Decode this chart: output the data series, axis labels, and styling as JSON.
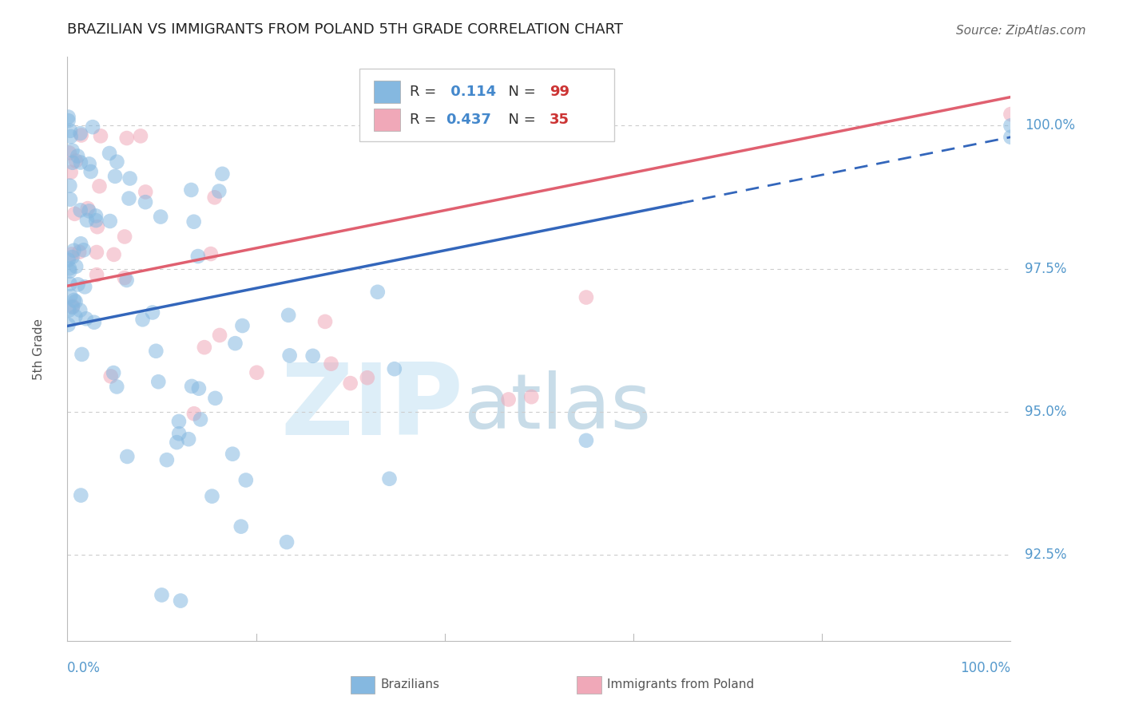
{
  "title": "BRAZILIAN VS IMMIGRANTS FROM POLAND 5TH GRADE CORRELATION CHART",
  "source": "Source: ZipAtlas.com",
  "ylabel": "5th Grade",
  "y_ticks": [
    92.5,
    95.0,
    97.5,
    100.0
  ],
  "y_tick_labels": [
    "92.5%",
    "95.0%",
    "97.5%",
    "100.0%"
  ],
  "ylim": [
    91.0,
    101.2
  ],
  "xlim": [
    0.0,
    100.0
  ],
  "blue_R": 0.114,
  "blue_N": 99,
  "pink_R": 0.437,
  "pink_N": 35,
  "blue_color": "#85b8e0",
  "pink_color": "#f0a8b8",
  "blue_line_color": "#3366bb",
  "pink_line_color": "#e06070",
  "watermark_zip": "ZIP",
  "watermark_atlas": "atlas",
  "watermark_color": "#ddeef8",
  "legend_blue_label": "Brazilians",
  "legend_pink_label": "Immigrants from Poland",
  "legend_r_color": "#4488cc",
  "legend_n_color": "#cc3333",
  "legend_text_color": "#333333",
  "blue_line_x0": 0,
  "blue_line_x1": 100,
  "blue_line_y0": 96.5,
  "blue_line_y1": 99.8,
  "blue_solid_end": 65,
  "pink_line_x0": 0,
  "pink_line_x1": 100,
  "pink_line_y0": 97.2,
  "pink_line_y1": 100.5,
  "title_fontsize": 13,
  "source_fontsize": 11,
  "tick_label_fontsize": 12,
  "axis_label_fontsize": 11
}
